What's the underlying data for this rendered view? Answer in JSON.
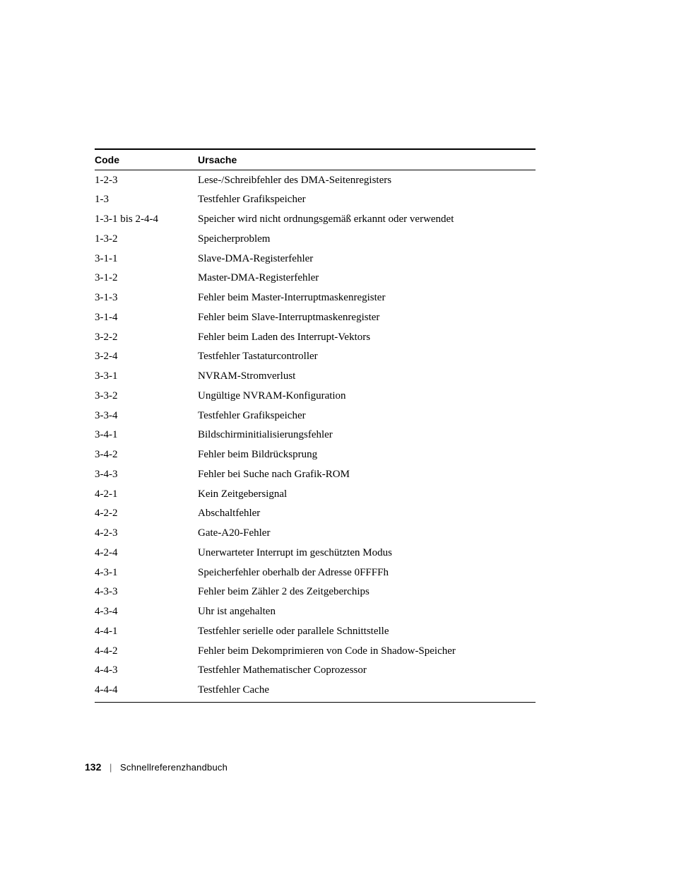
{
  "table": {
    "headers": {
      "code": "Code",
      "cause": "Ursache"
    },
    "rows": [
      {
        "code": "1-2-3",
        "cause": "Lese-/Schreibfehler des DMA-Seitenregisters"
      },
      {
        "code": "1-3",
        "cause": "Testfehler Grafikspeicher"
      },
      {
        "code": "1-3-1 bis 2-4-4",
        "cause": "Speicher wird nicht ordnungsgemäß erkannt oder verwendet"
      },
      {
        "code": "1-3-2",
        "cause": "Speicherproblem"
      },
      {
        "code": "3-1-1",
        "cause": "Slave-DMA-Registerfehler"
      },
      {
        "code": "3-1-2",
        "cause": "Master-DMA-Registerfehler"
      },
      {
        "code": "3-1-3",
        "cause": "Fehler beim Master-Interruptmaskenregister"
      },
      {
        "code": "3-1-4",
        "cause": "Fehler beim Slave-Interruptmaskenregister"
      },
      {
        "code": "3-2-2",
        "cause": "Fehler beim Laden des Interrupt-Vektors"
      },
      {
        "code": "3-2-4",
        "cause": "Testfehler Tastaturcontroller"
      },
      {
        "code": "3-3-1",
        "cause": "NVRAM-Stromverlust"
      },
      {
        "code": "3-3-2",
        "cause": "Ungültige NVRAM-Konfiguration"
      },
      {
        "code": "3-3-4",
        "cause": "Testfehler Grafikspeicher"
      },
      {
        "code": "3-4-1",
        "cause": "Bildschirminitialisierungsfehler"
      },
      {
        "code": "3-4-2",
        "cause": "Fehler beim Bildrücksprung"
      },
      {
        "code": "3-4-3",
        "cause": "Fehler bei Suche nach Grafik-ROM"
      },
      {
        "code": "4-2-1",
        "cause": "Kein Zeitgebersignal"
      },
      {
        "code": "4-2-2",
        "cause": "Abschaltfehler"
      },
      {
        "code": "4-2-3",
        "cause": "Gate-A20-Fehler"
      },
      {
        "code": "4-2-4",
        "cause": "Unerwarteter Interrupt im geschützten Modus"
      },
      {
        "code": "4-3-1",
        "cause": "Speicherfehler oberhalb der Adresse 0FFFFh"
      },
      {
        "code": "4-3-3",
        "cause": "Fehler beim Zähler 2 des Zeitgeberchips"
      },
      {
        "code": "4-3-4",
        "cause": "Uhr ist angehalten"
      },
      {
        "code": "4-4-1",
        "cause": "Testfehler serielle oder parallele Schnittstelle"
      },
      {
        "code": "4-4-2",
        "cause": "Fehler beim Dekomprimieren von Code in Shadow-Speicher"
      },
      {
        "code": "4-4-3",
        "cause": "Testfehler Mathematischer Coprozessor"
      },
      {
        "code": "4-4-4",
        "cause": "Testfehler Cache"
      }
    ]
  },
  "footer": {
    "page_number": "132",
    "separator": "|",
    "title": "Schnellreferenzhandbuch"
  }
}
